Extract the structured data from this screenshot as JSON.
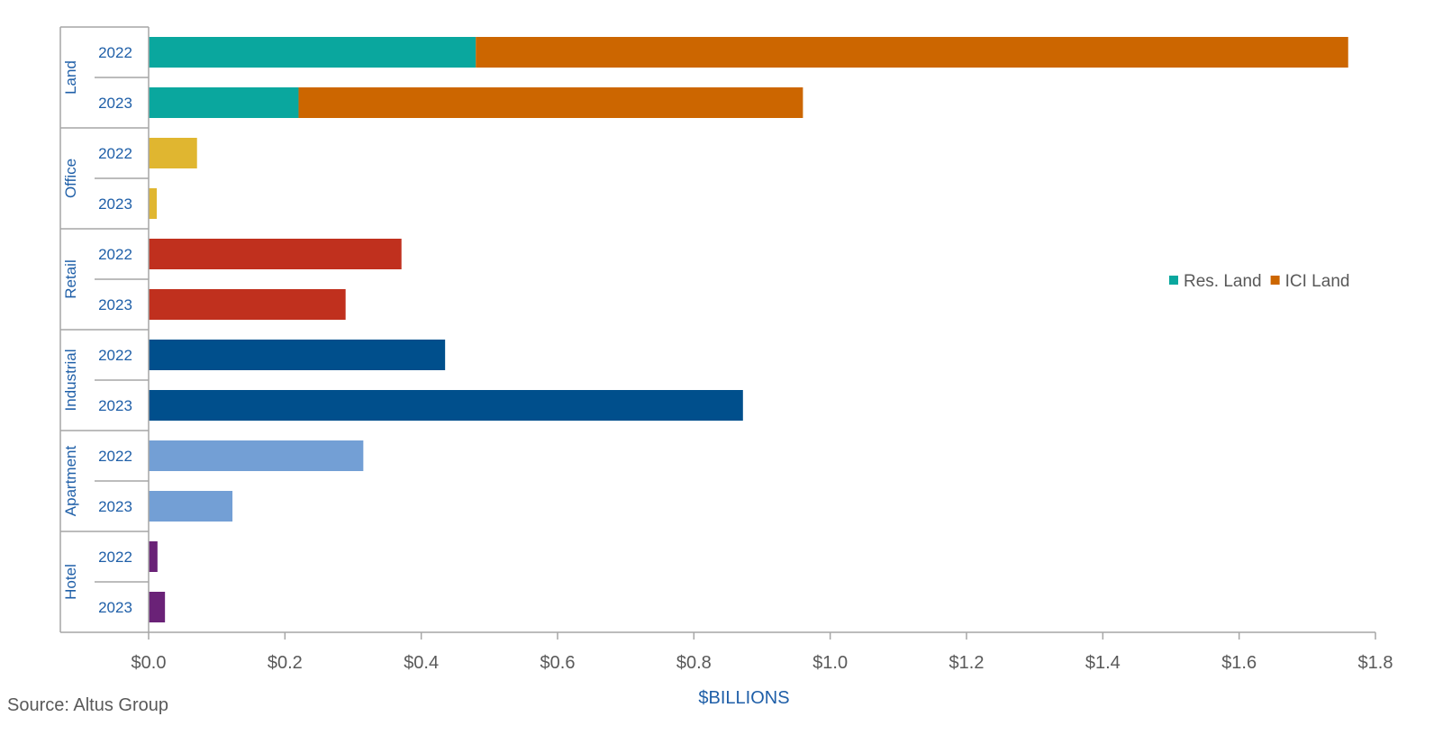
{
  "chart_data": {
    "type": "bar",
    "orientation": "horizontal",
    "stacked": true,
    "title": "",
    "xlabel": "$BILLIONS",
    "ylabel": "",
    "xlim": [
      0,
      1.8
    ],
    "xticks": [
      0,
      0.2,
      0.4,
      0.6,
      0.8,
      1.0,
      1.2,
      1.4,
      1.6,
      1.8
    ],
    "xtick_labels": [
      "$0.0",
      "$0.2",
      "$0.4",
      "$0.6",
      "$0.8",
      "$1.0",
      "$1.2",
      "$1.4",
      "$1.6",
      "$1.8"
    ],
    "groups": [
      {
        "name": "Land",
        "rows": [
          {
            "year": "2022",
            "segments": [
              {
                "series": "Res. Land",
                "value": 0.48,
                "color": "#0aa79e"
              },
              {
                "series": "ICI Land",
                "value": 1.28,
                "color": "#cc6600"
              }
            ]
          },
          {
            "year": "2023",
            "segments": [
              {
                "series": "Res. Land",
                "value": 0.22,
                "color": "#0aa79e"
              },
              {
                "series": "ICI Land",
                "value": 0.74,
                "color": "#cc6600"
              }
            ]
          }
        ]
      },
      {
        "name": "Office",
        "rows": [
          {
            "year": "2022",
            "segments": [
              {
                "series": "Office",
                "value": 0.071,
                "color": "#e0b630"
              }
            ]
          },
          {
            "year": "2023",
            "segments": [
              {
                "series": "Office",
                "value": 0.012,
                "color": "#e0b630"
              }
            ]
          }
        ]
      },
      {
        "name": "Retail",
        "rows": [
          {
            "year": "2022",
            "segments": [
              {
                "series": "Retail",
                "value": 0.371,
                "color": "#c0301e"
              }
            ]
          },
          {
            "year": "2023",
            "segments": [
              {
                "series": "Retail",
                "value": 0.289,
                "color": "#c0301e"
              }
            ]
          }
        ]
      },
      {
        "name": "Industrial",
        "rows": [
          {
            "year": "2022",
            "segments": [
              {
                "series": "Industrial",
                "value": 0.435,
                "color": "#004f8c"
              }
            ]
          },
          {
            "year": "2023",
            "segments": [
              {
                "series": "Industrial",
                "value": 0.872,
                "color": "#004f8c"
              }
            ]
          }
        ]
      },
      {
        "name": "Apartment",
        "rows": [
          {
            "year": "2022",
            "segments": [
              {
                "series": "Apartment",
                "value": 0.315,
                "color": "#739fd5"
              }
            ]
          },
          {
            "year": "2023",
            "segments": [
              {
                "series": "Apartment",
                "value": 0.123,
                "color": "#739fd5"
              }
            ]
          }
        ]
      },
      {
        "name": "Hotel",
        "rows": [
          {
            "year": "2022",
            "segments": [
              {
                "series": "Hotel",
                "value": 0.013,
                "color": "#6a2277"
              }
            ]
          },
          {
            "year": "2023",
            "segments": [
              {
                "series": "Hotel",
                "value": 0.024,
                "color": "#6a2277"
              }
            ]
          }
        ]
      }
    ],
    "legend": {
      "position": "right",
      "entries": [
        {
          "label": "Res. Land",
          "color": "#0aa79e"
        },
        {
          "label": "ICI Land",
          "color": "#cc6600"
        }
      ]
    },
    "grid": false
  },
  "source": "Source:  Altus Group"
}
